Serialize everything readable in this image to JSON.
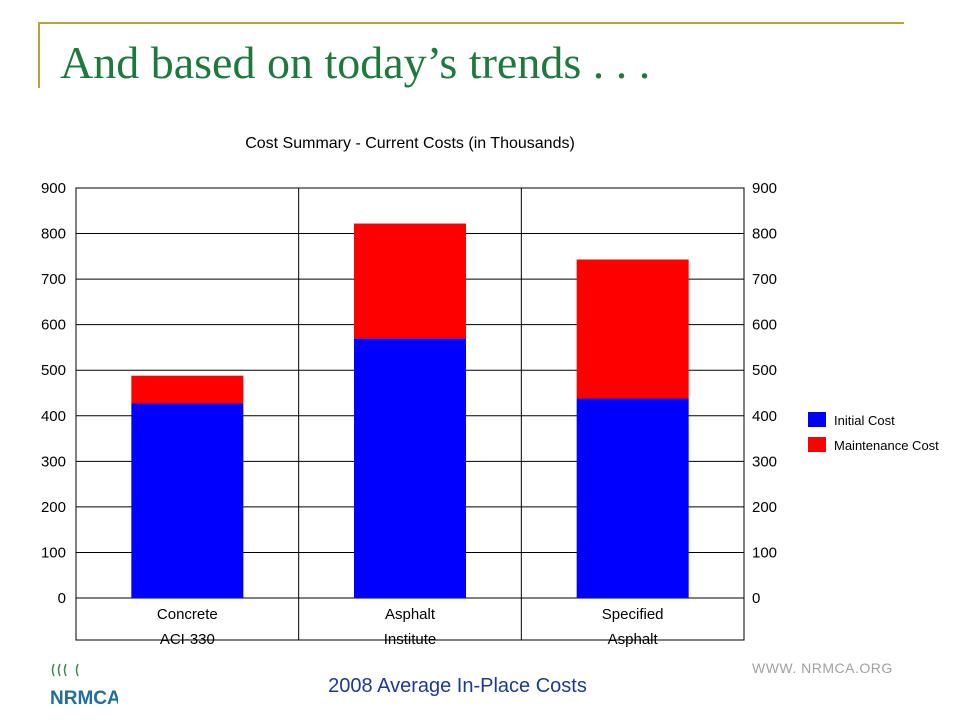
{
  "slide": {
    "title": "And based on today’s trends . . .",
    "caption": "2008 Average In-Place Costs",
    "url": "WWW. NRMCA.ORG",
    "logo_text": "NRMCA",
    "colors": {
      "title": "#1d7a3c",
      "frame": "#b8a33a",
      "caption": "#1a3a9a"
    }
  },
  "chart_data": {
    "type": "bar",
    "stacked": true,
    "title": "Cost Summary - Current Costs (in Thousands)",
    "categories": [
      [
        "Concrete",
        "ACI-330"
      ],
      [
        "Asphalt",
        "Institute"
      ],
      [
        "Specified",
        "Asphalt"
      ]
    ],
    "series": [
      {
        "name": "Initial Cost",
        "color": "#0000ff",
        "values": [
          427,
          570,
          438
        ]
      },
      {
        "name": "Maintenance Cost",
        "color": "#ff0000",
        "values": [
          61,
          252,
          305
        ]
      }
    ],
    "ylim": [
      0,
      900
    ],
    "yticks": [
      0,
      100,
      200,
      300,
      400,
      500,
      600,
      700,
      800,
      900
    ],
    "grid": true,
    "legend": "right"
  }
}
